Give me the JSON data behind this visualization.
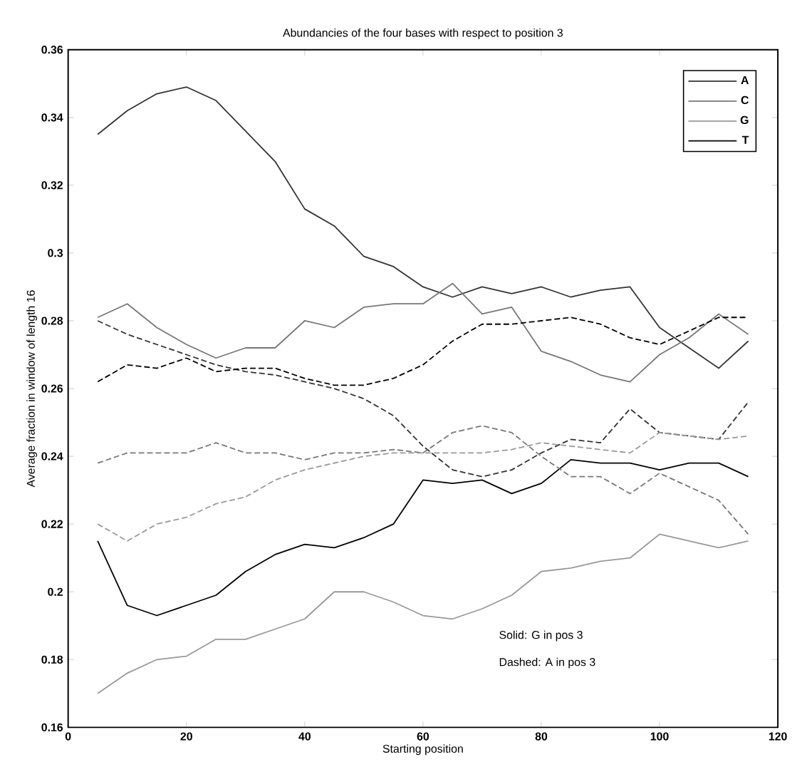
{
  "chart_data": {
    "type": "line",
    "title": "Abundancies of the four bases with respect to position 3",
    "xlabel": "Starting position",
    "ylabel": "Average fraction in window of length 16",
    "x": [
      5,
      10,
      15,
      20,
      25,
      30,
      35,
      40,
      45,
      50,
      55,
      60,
      65,
      70,
      75,
      80,
      85,
      90,
      95,
      100,
      105,
      110,
      115
    ],
    "xlim": [
      0,
      120
    ],
    "xticks": [
      0,
      20,
      40,
      60,
      80,
      100,
      120
    ],
    "ylim": [
      0.16,
      0.36
    ],
    "yticks": [
      0.16,
      0.18,
      0.2,
      0.22,
      0.24,
      0.26,
      0.28,
      0.3,
      0.32,
      0.34,
      0.36
    ],
    "legend": "top right",
    "line_style": "solid",
    "series": [
      {
        "name": "A",
        "color": "#333333",
        "values": [
          0.335,
          0.342,
          0.347,
          0.349,
          0.345,
          0.336,
          0.327,
          0.313,
          0.308,
          0.299,
          0.296,
          0.29,
          0.287,
          0.29,
          0.288,
          0.29,
          0.287,
          0.289,
          0.29,
          0.278,
          0.272,
          0.266,
          0.274
        ]
      },
      {
        "name": "C",
        "color": "#777777",
        "values": [
          0.281,
          0.285,
          0.278,
          0.273,
          0.269,
          0.272,
          0.272,
          0.28,
          0.278,
          0.284,
          0.285,
          0.285,
          0.291,
          0.282,
          0.284,
          0.271,
          0.268,
          0.264,
          0.262,
          0.27,
          0.275,
          0.282,
          0.276
        ]
      },
      {
        "name": "G",
        "color": "#999999",
        "values": [
          0.17,
          0.176,
          0.18,
          0.181,
          0.186,
          0.186,
          0.189,
          0.192,
          0.2,
          0.2,
          0.197,
          0.193,
          0.192,
          0.195,
          0.199,
          0.206,
          0.207,
          0.209,
          0.21,
          0.217,
          0.215,
          0.213,
          0.215
        ]
      },
      {
        "name": "T",
        "color": "#000000",
        "values": [
          0.215,
          0.196,
          0.193,
          0.196,
          0.199,
          0.206,
          0.211,
          0.214,
          0.213,
          0.216,
          0.22,
          0.233,
          0.232,
          0.233,
          0.229,
          0.232,
          0.239,
          0.238,
          0.238,
          0.236,
          0.238,
          0.238,
          0.234
        ]
      },
      {
        "color": "#333333",
        "line_style": "dashed",
        "values": [
          0.28,
          0.276,
          0.273,
          0.27,
          0.267,
          0.265,
          0.264,
          0.262,
          0.26,
          0.257,
          0.252,
          0.243,
          0.236,
          0.234,
          0.236,
          0.241,
          0.245,
          0.244,
          0.254,
          0.247,
          0.246,
          0.245,
          0.256
        ]
      },
      {
        "color": "#777777",
        "line_style": "dashed",
        "values": [
          0.238,
          0.241,
          0.241,
          0.241,
          0.244,
          0.241,
          0.241,
          0.239,
          0.241,
          0.241,
          0.242,
          0.241,
          0.247,
          0.249,
          0.247,
          0.24,
          0.234,
          0.234,
          0.229,
          0.235,
          0.231,
          0.227,
          0.217
        ]
      },
      {
        "color": "#999999",
        "line_style": "dashed",
        "values": [
          0.22,
          0.215,
          0.22,
          0.222,
          0.226,
          0.228,
          0.233,
          0.236,
          0.238,
          0.24,
          0.241,
          0.241,
          0.241,
          0.241,
          0.242,
          0.244,
          0.243,
          0.242,
          0.241,
          0.247,
          0.246,
          0.245,
          0.246
        ]
      },
      {
        "color": "#000000",
        "line_style": "dashed",
        "values": [
          0.262,
          0.267,
          0.266,
          0.269,
          0.265,
          0.266,
          0.266,
          0.263,
          0.261,
          0.261,
          0.263,
          0.267,
          0.274,
          0.279,
          0.279,
          0.28,
          0.281,
          0.279,
          0.275,
          0.273,
          0.277,
          0.281,
          0.281
        ]
      }
    ],
    "annotations": [
      "Solid: G in pos 3",
      "Dashed: A in pos 3"
    ]
  }
}
